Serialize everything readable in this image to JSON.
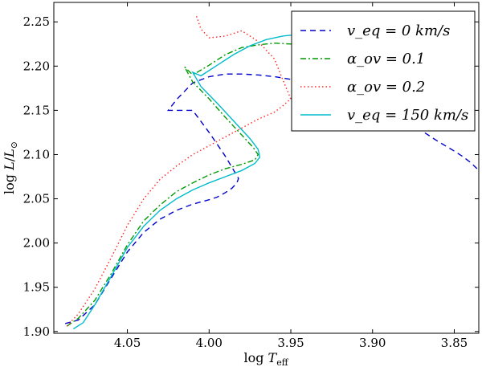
{
  "chart_data": {
    "type": "line",
    "title": "",
    "xlabel": "log T_eff",
    "ylabel": "log L/L_⊙",
    "xlim": [
      4.095,
      3.835
    ],
    "ylim": [
      1.898,
      2.272
    ],
    "xticks": [
      4.05,
      4.0,
      3.95,
      3.9,
      3.85
    ],
    "xtick_labels": [
      "4.05",
      "4.00",
      "3.95",
      "3.90",
      "3.85"
    ],
    "yticks": [
      1.9,
      1.95,
      2.0,
      2.05,
      2.1,
      2.15,
      2.2,
      2.25
    ],
    "ytick_labels": [
      "1.90",
      "1.95",
      "2.00",
      "2.05",
      "2.10",
      "2.15",
      "2.20",
      "2.25"
    ],
    "grid": false,
    "legend_position": "top-right",
    "series": [
      {
        "name": "v_eq = 0 km/s",
        "label": "v_eq = 0 km/s",
        "color": "#0000cc",
        "style": "dashed",
        "x": [
          4.088,
          4.08,
          4.07,
          4.06,
          4.05,
          4.04,
          4.03,
          4.02,
          4.01,
          4.0,
          3.995,
          3.99,
          3.986,
          3.983,
          3.982,
          3.99,
          4.0,
          4.01,
          4.025,
          4.02,
          4.01,
          4.0,
          3.99,
          3.98,
          3.97,
          3.96,
          3.95,
          3.94,
          3.93,
          3.92,
          3.91,
          3.9,
          3.89,
          3.88,
          3.87,
          3.86,
          3.85,
          3.845,
          3.84,
          3.836
        ],
        "y": [
          1.909,
          1.913,
          1.93,
          1.96,
          1.99,
          2.012,
          2.027,
          2.037,
          2.044,
          2.049,
          2.052,
          2.057,
          2.062,
          2.068,
          2.073,
          2.098,
          2.125,
          2.15,
          2.15,
          2.162,
          2.181,
          2.188,
          2.191,
          2.191,
          2.19,
          2.188,
          2.185,
          2.183,
          2.183,
          2.179,
          2.173,
          2.165,
          2.153,
          2.14,
          2.127,
          2.115,
          2.104,
          2.098,
          2.091,
          2.084
        ]
      },
      {
        "name": "alpha_ov = 0.1",
        "label": "α_ov = 0.1",
        "color": "#009900",
        "style": "dashdot",
        "x": [
          4.087,
          4.08,
          4.07,
          4.06,
          4.05,
          4.04,
          4.03,
          4.02,
          4.01,
          4.0,
          3.99,
          3.98,
          3.972,
          3.97,
          3.973,
          3.98,
          3.99,
          4.0,
          4.01,
          4.015,
          4.01,
          4.0,
          3.99,
          3.98,
          3.97,
          3.96,
          3.95,
          3.945,
          3.94
        ],
        "y": [
          1.906,
          1.915,
          1.935,
          1.965,
          1.998,
          2.025,
          2.043,
          2.058,
          2.068,
          2.077,
          2.084,
          2.089,
          2.094,
          2.1,
          2.108,
          2.122,
          2.142,
          2.163,
          2.182,
          2.199,
          2.19,
          2.201,
          2.213,
          2.221,
          2.224,
          2.226,
          2.225,
          2.223,
          2.22
        ]
      },
      {
        "name": "alpha_ov = 0.2",
        "label": "α_ov = 0.2",
        "color": "#ff2222",
        "style": "dotted",
        "x": [
          4.087,
          4.08,
          4.07,
          4.06,
          4.05,
          4.04,
          4.03,
          4.02,
          4.01,
          4.0,
          3.99,
          3.98,
          3.97,
          3.96,
          3.955,
          3.95,
          3.955,
          3.96,
          3.97,
          3.98,
          3.99,
          4.0,
          4.005,
          4.008
        ],
        "y": [
          1.906,
          1.92,
          1.948,
          1.983,
          2.02,
          2.05,
          2.072,
          2.087,
          2.1,
          2.11,
          2.12,
          2.13,
          2.14,
          2.148,
          2.155,
          2.163,
          2.185,
          2.208,
          2.228,
          2.24,
          2.234,
          2.232,
          2.242,
          2.258
        ]
      },
      {
        "name": "v_eq = 150 km/s",
        "label": "v_eq = 150 km/s",
        "color": "#00bbcc",
        "style": "solid",
        "x": [
          4.083,
          4.077,
          4.07,
          4.06,
          4.05,
          4.04,
          4.03,
          4.02,
          4.01,
          4.0,
          3.99,
          3.98,
          3.972,
          3.969,
          3.97,
          3.975,
          3.985,
          3.995,
          4.005,
          4.01,
          4.005,
          3.995,
          3.985,
          3.975,
          3.965,
          3.955,
          3.95,
          3.945,
          3.94
        ],
        "y": [
          1.903,
          1.91,
          1.93,
          1.962,
          1.995,
          2.019,
          2.037,
          2.05,
          2.06,
          2.068,
          2.075,
          2.082,
          2.09,
          2.097,
          2.106,
          2.118,
          2.138,
          2.158,
          2.177,
          2.193,
          2.189,
          2.201,
          2.213,
          2.223,
          2.23,
          2.234,
          2.235,
          2.235,
          2.234
        ]
      }
    ]
  }
}
